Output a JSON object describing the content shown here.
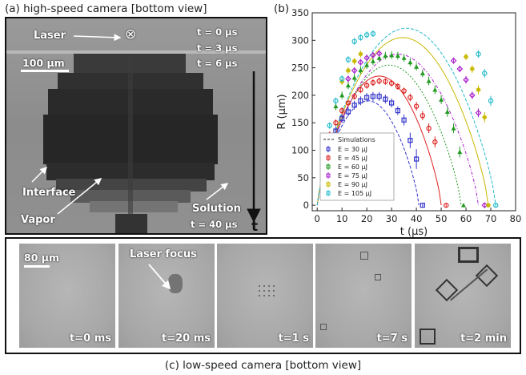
{
  "captions": {
    "a": "(a) high-speed camera [bottom view]",
    "b": "(b)",
    "c": "(c) low-speed camera [bottom view]"
  },
  "panel_a": {
    "laser_label": "Laser",
    "laser_symbol": "⊗",
    "times": [
      "t = 0 μs",
      "t = 3 μs",
      "t = 6 μs"
    ],
    "scale_label": "100 μm",
    "interface_label": "Interface",
    "vapor_label": "Vapor",
    "solution_label": "Solution",
    "final_time": "t = 40 μs",
    "time_axis_label": "t"
  },
  "panel_c": {
    "scale_label": "80 μm",
    "laser_focus_label": "Laser focus",
    "frames": [
      "t=0 ms",
      "t=20 ms",
      "t=1 s",
      "t=7 s",
      "t=2 min"
    ]
  },
  "chart_data": {
    "type": "scatter",
    "xlabel": "t (μs)",
    "ylabel": "R (μm)",
    "xlim": [
      -2,
      80
    ],
    "ylim": [
      -10,
      350
    ],
    "xticks": [
      0,
      10,
      20,
      30,
      40,
      50,
      60,
      70,
      80
    ],
    "yticks": [
      0,
      50,
      100,
      150,
      200,
      250,
      300,
      350
    ],
    "legend_position": "bottom-left",
    "legend_simulations_label": "Simulations",
    "series": [
      {
        "name": "E = 30 μJ",
        "color": "#3333cc",
        "marker": "square",
        "x": [
          5,
          7.5,
          10,
          12.5,
          15,
          17.5,
          20,
          22.5,
          25,
          27.5,
          30,
          32.5,
          35,
          37.5,
          40,
          42.5
        ],
        "y": [
          115,
          135,
          158,
          170,
          182,
          190,
          196,
          198,
          198,
          193,
          186,
          172,
          155,
          118,
          84,
          0
        ],
        "err": [
          8,
          8,
          8,
          8,
          8,
          8,
          8,
          8,
          8,
          8,
          8,
          8,
          10,
          14,
          18,
          3
        ],
        "sim_peak": 190,
        "sim_tend": 41
      },
      {
        "name": "E = 45 μJ",
        "color": "#dd2222",
        "marker": "circle",
        "x": [
          5,
          7.5,
          10,
          12.5,
          15,
          17.5,
          20,
          22.5,
          25,
          27.5,
          30,
          32.5,
          35,
          37.5,
          40,
          42.5,
          45,
          47.5,
          52
        ],
        "y": [
          128,
          150,
          172,
          186,
          198,
          210,
          218,
          223,
          226,
          225,
          222,
          216,
          208,
          196,
          180,
          163,
          140,
          115,
          0
        ],
        "err": [
          6,
          6,
          6,
          6,
          6,
          6,
          6,
          6,
          6,
          6,
          6,
          6,
          6,
          7,
          8,
          8,
          9,
          10,
          3
        ],
        "sim_peak": 235,
        "sim_tend": 50
      },
      {
        "name": "E = 60 μJ",
        "color": "#229922",
        "marker": "triangle",
        "x": [
          7.5,
          10,
          12.5,
          15,
          17.5,
          20,
          22.5,
          25,
          27.5,
          30,
          32.5,
          35,
          37.5,
          40,
          42.5,
          45,
          47.5,
          50,
          52.5,
          55,
          57.5,
          59
        ],
        "y": [
          180,
          200,
          218,
          232,
          246,
          255,
          262,
          268,
          272,
          273,
          272,
          268,
          260,
          252,
          240,
          226,
          210,
          192,
          170,
          140,
          97,
          0
        ],
        "err": [
          7,
          7,
          7,
          7,
          7,
          7,
          7,
          7,
          7,
          7,
          7,
          7,
          7,
          7,
          7,
          8,
          8,
          8,
          9,
          9,
          10,
          3
        ],
        "sim_peak": 255,
        "sim_tend": 58
      },
      {
        "name": "E = 75 μJ",
        "color": "#aa22cc",
        "marker": "diamond",
        "x": [
          12.5,
          15,
          17.5,
          20,
          22.5,
          25,
          55,
          57.5,
          60,
          62.5,
          65,
          67.5
        ],
        "y": [
          230,
          245,
          260,
          268,
          273,
          276,
          263,
          248,
          228,
          200,
          168,
          0
        ],
        "err": [
          6,
          6,
          6,
          6,
          6,
          6,
          6,
          6,
          7,
          7,
          8,
          3
        ],
        "sim_peak": 275,
        "sim_tend": 65
      },
      {
        "name": "E = 90 μJ",
        "color": "#c9b800",
        "marker": "star",
        "x": [
          10,
          12.5,
          15,
          17.5,
          60,
          62.5,
          65,
          67.5,
          69
        ],
        "y": [
          225,
          245,
          262,
          275,
          270,
          248,
          210,
          160,
          0
        ],
        "err": [
          6,
          6,
          6,
          6,
          6,
          7,
          8,
          9,
          3
        ],
        "sim_peak": 305,
        "sim_tend": 69
      },
      {
        "name": "E = 105 μJ",
        "color": "#22bbcc",
        "marker": "hexagon",
        "x": [
          5,
          7.5,
          10,
          12.5,
          15,
          17.5,
          20,
          22.5,
          65,
          67.5,
          70,
          72
        ],
        "y": [
          145,
          190,
          230,
          265,
          298,
          305,
          310,
          312,
          275,
          240,
          190,
          0
        ],
        "err": [
          6,
          6,
          6,
          6,
          6,
          6,
          6,
          6,
          7,
          8,
          9,
          3
        ],
        "sim_peak": 322,
        "sim_tend": 72
      }
    ]
  }
}
